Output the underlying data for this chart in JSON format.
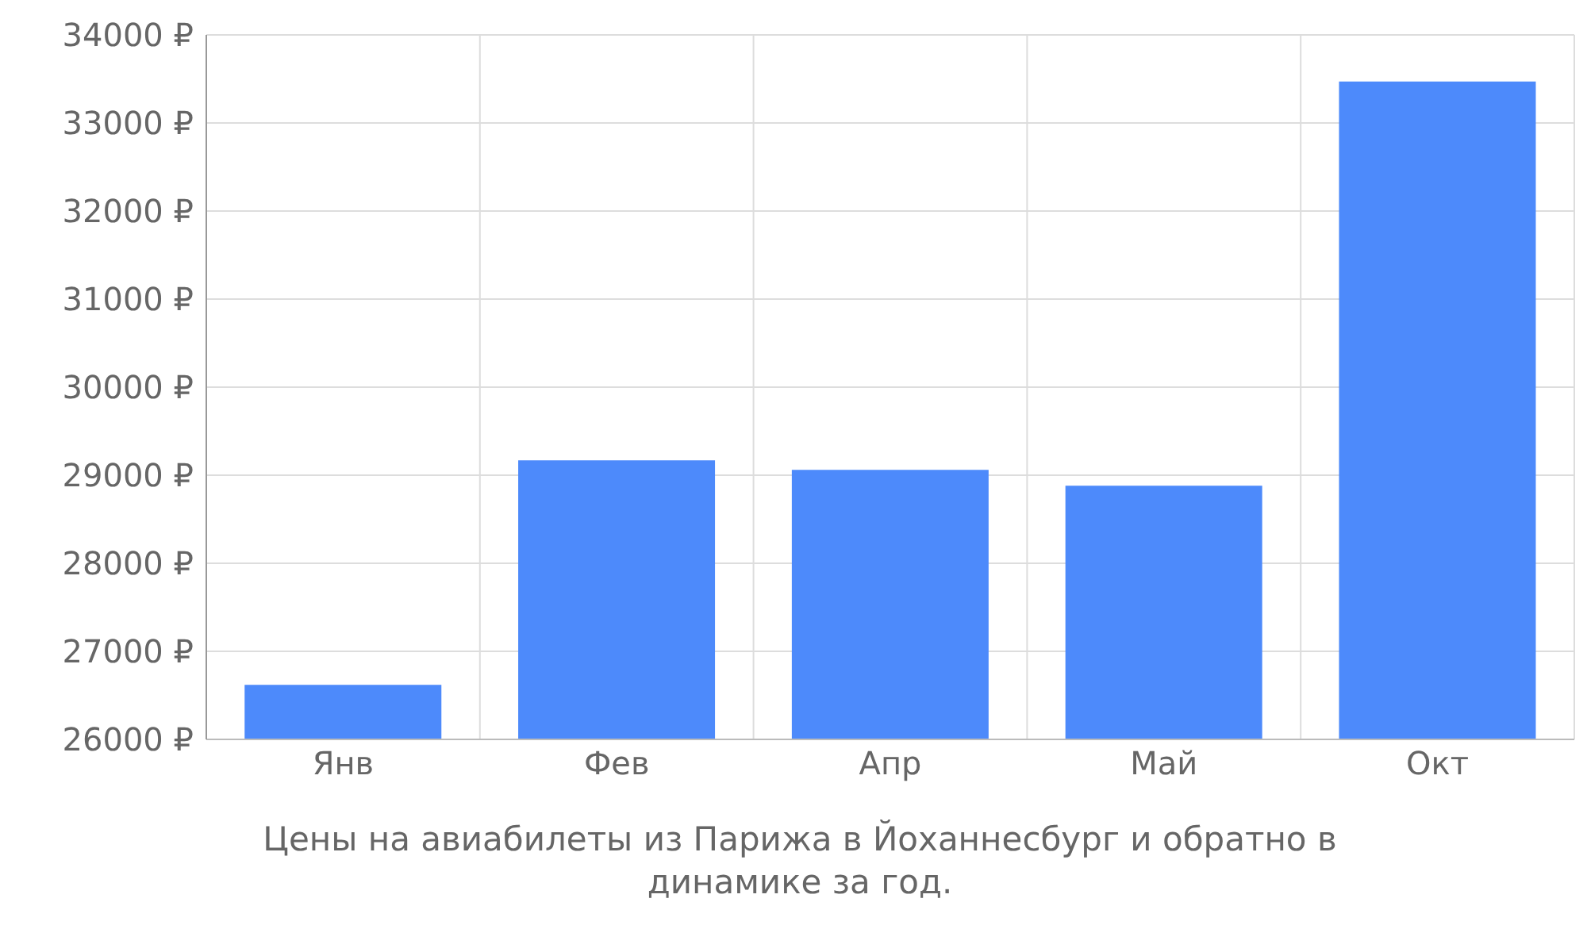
{
  "chart_data": {
    "type": "bar",
    "categories": [
      "Янв",
      "Фев",
      "Апр",
      "Май",
      "Окт"
    ],
    "values": [
      26620,
      29170,
      29060,
      28880,
      33470
    ],
    "color": "#4d8afb",
    "ylim": [
      26000,
      34000
    ],
    "yticks": [
      {
        "value": 26000,
        "label": "26000 ₽"
      },
      {
        "value": 27000,
        "label": "27000 ₽"
      },
      {
        "value": 28000,
        "label": "28000 ₽"
      },
      {
        "value": 29000,
        "label": "29000 ₽"
      },
      {
        "value": 30000,
        "label": "30000 ₽"
      },
      {
        "value": 31000,
        "label": "31000 ₽"
      },
      {
        "value": 32000,
        "label": "32000 ₽"
      },
      {
        "value": 33000,
        "label": "33000 ₽"
      },
      {
        "value": 34000,
        "label": "34000 ₽"
      }
    ],
    "grid": true,
    "legend": false,
    "annotations": [
      "Цены на авиабилеты из Парижа в Йоханнесбург и обратно в динамике за год."
    ]
  }
}
